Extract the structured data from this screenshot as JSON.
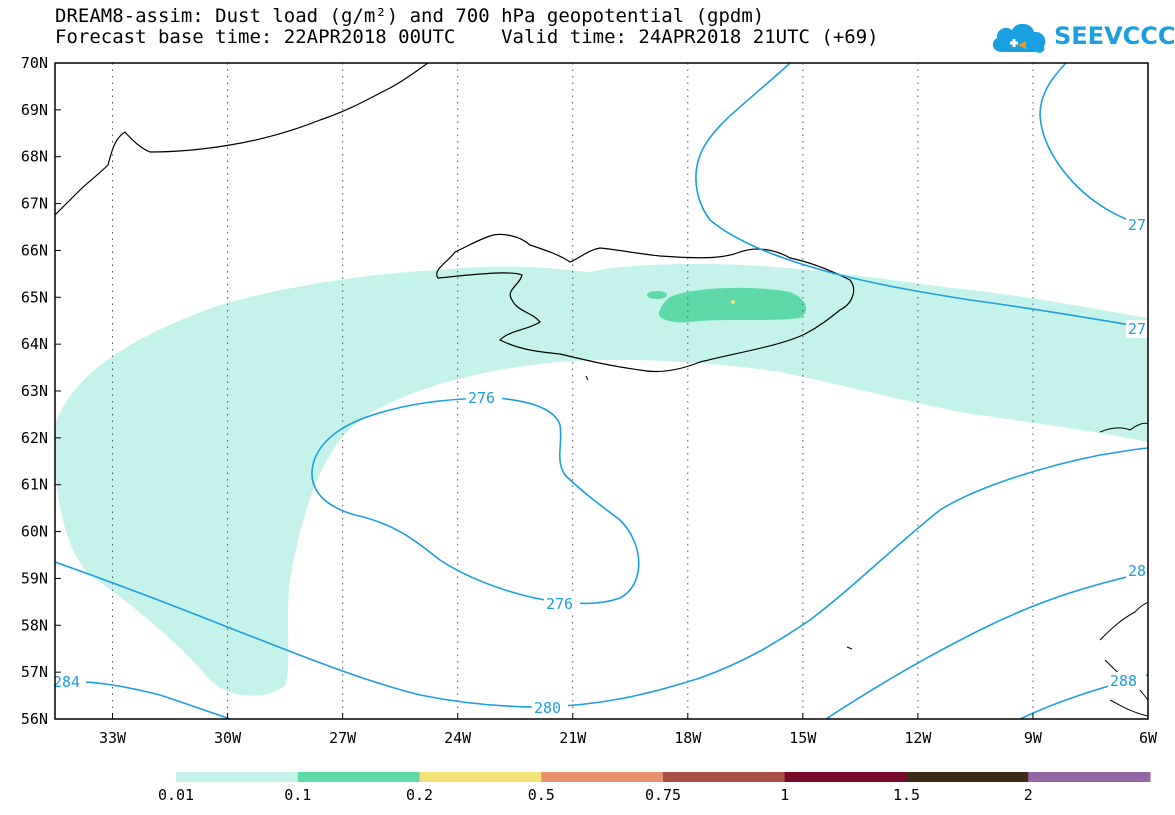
{
  "title": {
    "line1": "DREAM8-assim: Dust load (g/m²) and 700 hPa geopotential (gpdm)",
    "line2": "Forecast base time: 22APR2018 00UTC    Valid time: 24APR2018 21UTC (+69)"
  },
  "logo": {
    "text": "SEEVCCC",
    "icon": "cloud-icon"
  },
  "map": {
    "lat_labels": [
      "70N",
      "69N",
      "68N",
      "67N",
      "66N",
      "65N",
      "64N",
      "63N",
      "62N",
      "61N",
      "60N",
      "59N",
      "58N",
      "57N",
      "56N"
    ],
    "lon_labels": [
      "33W",
      "30W",
      "27W",
      "24W",
      "21W",
      "18W",
      "15W",
      "12W",
      "9W",
      "6W"
    ],
    "lat_range": [
      56,
      70
    ],
    "lon_range": [
      -34.5,
      -6
    ],
    "contour_labels": [
      "276",
      "276",
      "280",
      "284",
      "27",
      "27",
      "28",
      "288"
    ],
    "colors": {
      "contour": "#1a9fe0",
      "dust_001": "#c6f2ec",
      "dust_01": "#5edaa8",
      "dust_02": "#f5e37a"
    }
  },
  "colorbar": {
    "labels": [
      "0.01",
      "0.1",
      "0.2",
      "0.5",
      "0.75",
      "1",
      "1.5",
      "2"
    ],
    "colors": [
      "#c6f2ec",
      "#5edaa8",
      "#f5e37a",
      "#e89070",
      "#a84e42",
      "#7a0a2c",
      "#3e2a16",
      "#9466a6"
    ]
  }
}
